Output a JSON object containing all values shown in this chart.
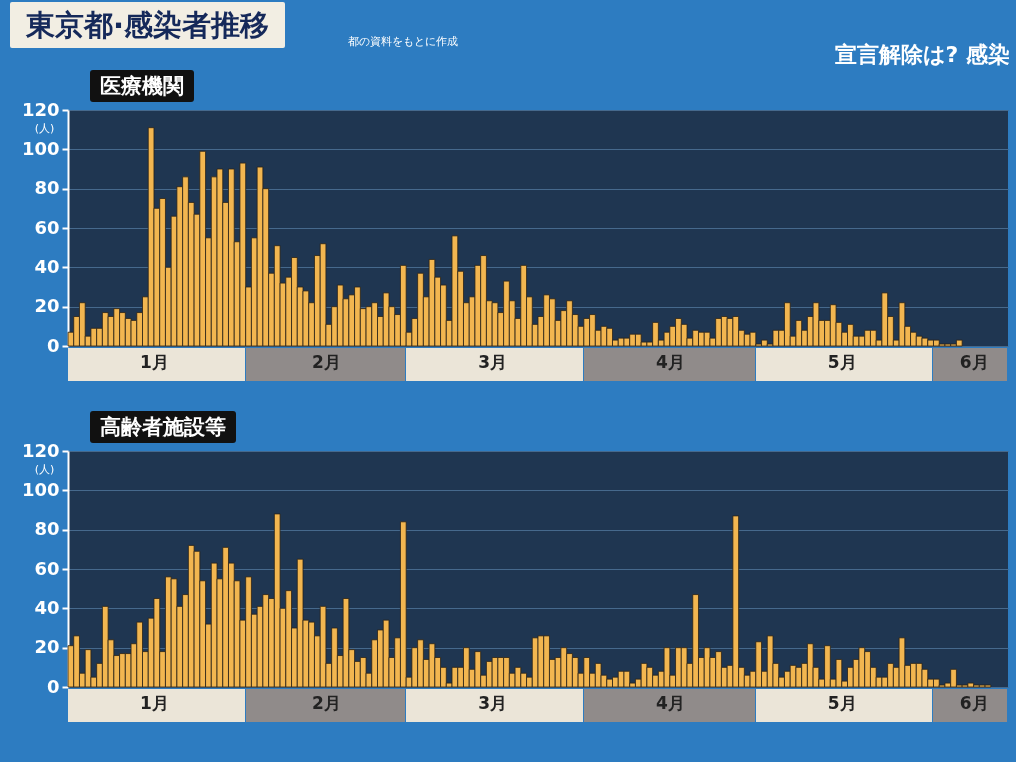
{
  "chart_data": [
    {
      "type": "bar",
      "title": "東京都·感染者推移",
      "subtitle": "医療機関",
      "annotations": [
        "都の資料をもとに作成",
        "宣言解除は? 感染"
      ],
      "ylabel": "(人)",
      "color": "#f2b650",
      "grid": "y",
      "xlim": [
        "--01-01",
        "--06-14"
      ],
      "xticks": [
        {
          "value": "--01-16",
          "label": "1月"
        },
        {
          "value": "--02-15",
          "label": "2月"
        },
        {
          "value": "--03-16",
          "label": "3月"
        },
        {
          "value": "--04-16",
          "label": "4月"
        },
        {
          "value": "--05-16",
          "label": "5月"
        },
        {
          "value": "--06-08",
          "label": "6月"
        }
      ],
      "ylim": [
        0,
        120
      ],
      "yticks": [
        0,
        20,
        40,
        60,
        80,
        100,
        120
      ],
      "x": [
        "--01-01",
        "--01-02",
        "--01-03",
        "--01-04",
        "--01-05",
        "--01-06",
        "--01-07",
        "--01-08",
        "--01-09",
        "--01-10",
        "--01-11",
        "--01-12",
        "--01-13",
        "--01-14",
        "--01-15",
        "--01-16",
        "--01-17",
        "--01-18",
        "--01-19",
        "--01-20",
        "--01-21",
        "--01-22",
        "--01-23",
        "--01-24",
        "--01-25",
        "--01-26",
        "--01-27",
        "--01-28",
        "--01-29",
        "--01-30",
        "--01-31",
        "--02-01",
        "--02-02",
        "--02-03",
        "--02-04",
        "--02-05",
        "--02-06",
        "--02-07",
        "--02-08",
        "--02-09",
        "--02-10",
        "--02-11",
        "--02-12",
        "--02-13",
        "--02-14",
        "--02-15",
        "--02-16",
        "--02-17",
        "--02-18",
        "--02-19",
        "--02-20",
        "--02-21",
        "--02-22",
        "--02-23",
        "--02-24",
        "--02-25",
        "--02-26",
        "--02-27",
        "--02-28",
        "--03-01",
        "--03-02",
        "--03-03",
        "--03-04",
        "--03-05",
        "--03-06",
        "--03-07",
        "--03-08",
        "--03-09",
        "--03-10",
        "--03-11",
        "--03-12",
        "--03-13",
        "--03-14",
        "--03-15",
        "--03-16",
        "--03-17",
        "--03-18",
        "--03-19",
        "--03-20",
        "--03-21",
        "--03-22",
        "--03-23",
        "--03-24",
        "--03-25",
        "--03-26",
        "--03-27",
        "--03-28",
        "--03-29",
        "--03-30",
        "--03-31",
        "--04-01",
        "--04-02",
        "--04-03",
        "--04-04",
        "--04-05",
        "--04-06",
        "--04-07",
        "--04-08",
        "--04-09",
        "--04-10",
        "--04-11",
        "--04-12",
        "--04-13",
        "--04-14",
        "--04-15",
        "--04-16",
        "--04-17",
        "--04-18",
        "--04-19",
        "--04-20",
        "--04-21",
        "--04-22",
        "--04-23",
        "--04-24",
        "--04-25",
        "--04-26",
        "--04-27",
        "--04-28",
        "--04-29",
        "--04-30",
        "--05-01",
        "--05-02",
        "--05-03",
        "--05-04",
        "--05-05",
        "--05-06",
        "--05-07",
        "--05-08",
        "--05-09",
        "--05-10",
        "--05-11",
        "--05-12",
        "--05-13",
        "--05-14",
        "--05-15",
        "--05-16",
        "--05-17",
        "--05-18",
        "--05-19",
        "--05-20",
        "--05-21",
        "--05-22",
        "--05-23",
        "--05-24",
        "--05-25",
        "--05-26",
        "--05-27",
        "--05-28",
        "--05-29",
        "--05-30",
        "--05-31",
        "--06-01",
        "--06-02",
        "--06-03",
        "--06-04",
        "--06-05"
      ],
      "values": [
        7,
        15,
        22,
        5,
        9,
        9,
        17,
        15,
        19,
        17,
        14,
        13,
        17,
        25,
        111,
        70,
        75,
        40,
        66,
        81,
        86,
        73,
        67,
        99,
        55,
        86,
        90,
        73,
        90,
        53,
        93,
        30,
        55,
        91,
        80,
        37,
        51,
        32,
        35,
        45,
        30,
        28,
        22,
        46,
        52,
        11,
        20,
        31,
        24,
        26,
        30,
        19,
        20,
        22,
        15,
        27,
        20,
        16,
        41,
        7,
        14,
        37,
        25,
        44,
        35,
        31,
        13,
        56,
        38,
        22,
        25,
        41,
        46,
        23,
        22,
        17,
        33,
        23,
        14,
        41,
        25,
        11,
        15,
        26,
        24,
        13,
        18,
        23,
        16,
        10,
        14,
        16,
        8,
        10,
        9,
        3,
        4,
        4,
        6,
        6,
        2,
        2,
        12,
        3,
        7,
        10,
        14,
        11,
        4,
        8,
        7,
        7,
        4,
        14,
        15,
        14,
        15,
        8,
        6,
        7,
        1,
        3,
        1,
        8,
        8,
        22,
        5,
        13,
        8,
        15,
        22,
        13,
        13,
        21,
        12,
        7,
        11,
        5,
        5,
        8,
        8,
        3,
        27,
        15,
        3,
        22,
        10,
        7,
        5,
        4,
        3,
        3,
        1,
        1,
        1,
        3
      ]
    },
    {
      "type": "bar",
      "subtitle": "高齢者施設等",
      "ylabel": "(人)",
      "color": "#f2b650",
      "grid": "y",
      "xlim": [
        "--01-01",
        "--06-14"
      ],
      "xticks": [
        {
          "value": "--01-16",
          "label": "1月"
        },
        {
          "value": "--02-15",
          "label": "2月"
        },
        {
          "value": "--03-16",
          "label": "3月"
        },
        {
          "value": "--04-16",
          "label": "4月"
        },
        {
          "value": "--05-16",
          "label": "5月"
        },
        {
          "value": "--06-08",
          "label": "6月"
        }
      ],
      "ylim": [
        0,
        120
      ],
      "yticks": [
        0,
        20,
        40,
        60,
        80,
        100,
        120
      ],
      "x": [
        "--01-01",
        "--01-02",
        "--01-03",
        "--01-04",
        "--01-05",
        "--01-06",
        "--01-07",
        "--01-08",
        "--01-09",
        "--01-10",
        "--01-11",
        "--01-12",
        "--01-13",
        "--01-14",
        "--01-15",
        "--01-16",
        "--01-17",
        "--01-18",
        "--01-19",
        "--01-20",
        "--01-21",
        "--01-22",
        "--01-23",
        "--01-24",
        "--01-25",
        "--01-26",
        "--01-27",
        "--01-28",
        "--01-29",
        "--01-30",
        "--01-31",
        "--02-01",
        "--02-02",
        "--02-03",
        "--02-04",
        "--02-05",
        "--02-06",
        "--02-07",
        "--02-08",
        "--02-09",
        "--02-10",
        "--02-11",
        "--02-12",
        "--02-13",
        "--02-14",
        "--02-15",
        "--02-16",
        "--02-17",
        "--02-18",
        "--02-19",
        "--02-20",
        "--02-21",
        "--02-22",
        "--02-23",
        "--02-24",
        "--02-25",
        "--02-26",
        "--02-27",
        "--02-28",
        "--03-01",
        "--03-02",
        "--03-03",
        "--03-04",
        "--03-05",
        "--03-06",
        "--03-07",
        "--03-08",
        "--03-09",
        "--03-10",
        "--03-11",
        "--03-12",
        "--03-13",
        "--03-14",
        "--03-15",
        "--03-16",
        "--03-17",
        "--03-18",
        "--03-19",
        "--03-20",
        "--03-21",
        "--03-22",
        "--03-23",
        "--03-24",
        "--03-25",
        "--03-26",
        "--03-27",
        "--03-28",
        "--03-29",
        "--03-30",
        "--03-31",
        "--04-01",
        "--04-02",
        "--04-03",
        "--04-04",
        "--04-05",
        "--04-06",
        "--04-07",
        "--04-08",
        "--04-09",
        "--04-10",
        "--04-11",
        "--04-12",
        "--04-13",
        "--04-14",
        "--04-15",
        "--04-16",
        "--04-17",
        "--04-18",
        "--04-19",
        "--04-20",
        "--04-21",
        "--04-22",
        "--04-23",
        "--04-24",
        "--04-25",
        "--04-26",
        "--04-27",
        "--04-28",
        "--04-29",
        "--04-30",
        "--05-01",
        "--05-02",
        "--05-03",
        "--05-04",
        "--05-05",
        "--05-06",
        "--05-07",
        "--05-08",
        "--05-09",
        "--05-10",
        "--05-11",
        "--05-12",
        "--05-13",
        "--05-14",
        "--05-15",
        "--05-16",
        "--05-17",
        "--05-18",
        "--05-19",
        "--05-20",
        "--05-21",
        "--05-22",
        "--05-23",
        "--05-24",
        "--05-25",
        "--05-26",
        "--05-27",
        "--05-28",
        "--05-29",
        "--05-30",
        "--05-31",
        "--06-01",
        "--06-02",
        "--06-03",
        "--06-04",
        "--06-05",
        "--06-06",
        "--06-07",
        "--06-08",
        "--06-09",
        "--06-10"
      ],
      "values": [
        21,
        26,
        7,
        19,
        5,
        12,
        41,
        24,
        16,
        17,
        17,
        22,
        33,
        18,
        35,
        45,
        18,
        56,
        55,
        41,
        47,
        72,
        69,
        54,
        32,
        63,
        55,
        71,
        63,
        54,
        34,
        56,
        37,
        41,
        47,
        45,
        88,
        40,
        49,
        30,
        65,
        34,
        33,
        26,
        41,
        12,
        30,
        16,
        45,
        19,
        13,
        15,
        7,
        24,
        29,
        34,
        15,
        25,
        84,
        5,
        20,
        24,
        14,
        22,
        15,
        10,
        2,
        10,
        10,
        20,
        9,
        18,
        6,
        13,
        15,
        15,
        15,
        7,
        10,
        7,
        5,
        25,
        26,
        26,
        14,
        15,
        20,
        17,
        15,
        7,
        15,
        7,
        12,
        6,
        4,
        5,
        8,
        8,
        2,
        4,
        12,
        10,
        6,
        8,
        20,
        6,
        20,
        20,
        12,
        47,
        15,
        20,
        15,
        18,
        10,
        11,
        87,
        10,
        6,
        8,
        23,
        8,
        26,
        12,
        5,
        8,
        11,
        10,
        12,
        22,
        10,
        4,
        21,
        4,
        14,
        3,
        10,
        14,
        20,
        18,
        10,
        5,
        5,
        12,
        10,
        25,
        11,
        12,
        12,
        9,
        4,
        4,
        1,
        2,
        9,
        1,
        1,
        2,
        1,
        1,
        1
      ]
    }
  ]
}
